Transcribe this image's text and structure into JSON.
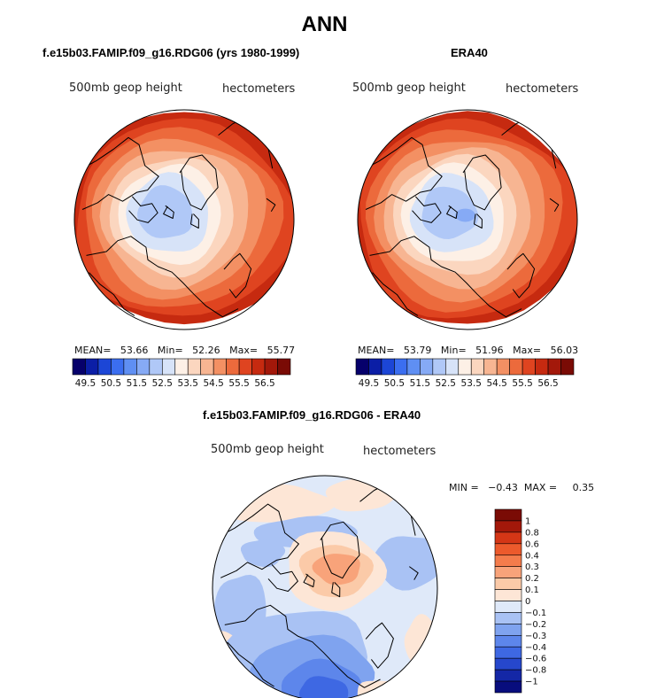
{
  "figure": {
    "title": "ANN"
  },
  "panels": [
    {
      "title": "f.e15b03.FAMIP.f09_g16.RDG06 (yrs 1980-1999)",
      "left_label": "500mb geop height",
      "right_label": "hectometers",
      "stats": {
        "mean_label": "MEAN=",
        "mean": "53.66",
        "min_label": "Min=",
        "min": "52.26",
        "max_label": "Max=",
        "max": "55.77"
      }
    },
    {
      "title": "ERA40",
      "left_label": "500mb geop height",
      "right_label": "hectometers",
      "stats": {
        "mean_label": "MEAN=",
        "mean": "53.79",
        "min_label": "Min=",
        "min": "51.96",
        "max_label": "Max=",
        "max": "56.03"
      }
    },
    {
      "title": "f.e15b03.FAMIP.f09_g16.RDG06 - ERA40",
      "left_label": "500mb geop height",
      "right_label": "hectometers",
      "stats": {
        "minmax_text": "MIN =   −0.43  MAX =     0.35"
      }
    }
  ],
  "chart_data": [
    {
      "type": "heatmap",
      "projection": "north polar stereographic",
      "title": "f.e15b03.FAMIP.f09_g16.RDG06 (yrs 1980-1999)",
      "units": "hectometers",
      "mean": 53.66,
      "min": 52.26,
      "max": 55.77,
      "colorbar_labels": [
        "49.5",
        "50.5",
        "51.5",
        "52.5",
        "53.5",
        "54.5",
        "55.5",
        "56.5"
      ],
      "colorbar_colors": [
        "#06006b",
        "#0b1ea6",
        "#1c46d6",
        "#3b6ef0",
        "#5f8ff3",
        "#86aaf5",
        "#b0c8f7",
        "#d7e3f8",
        "#fdf0e6",
        "#fbd6bf",
        "#f7b592",
        "#f39063",
        "#ec6a3c",
        "#df4420",
        "#c62a10",
        "#a3180a",
        "#7a0b05"
      ]
    },
    {
      "type": "heatmap",
      "projection": "north polar stereographic",
      "title": "ERA40",
      "units": "hectometers",
      "mean": 53.79,
      "min": 51.96,
      "max": 56.03,
      "colorbar_labels": [
        "49.5",
        "50.5",
        "51.5",
        "52.5",
        "53.5",
        "54.5",
        "55.5",
        "56.5"
      ],
      "colorbar_colors": [
        "#06006b",
        "#0b1ea6",
        "#1c46d6",
        "#3b6ef0",
        "#5f8ff3",
        "#86aaf5",
        "#b0c8f7",
        "#d7e3f8",
        "#fdf0e6",
        "#fbd6bf",
        "#f7b592",
        "#f39063",
        "#ec6a3c",
        "#df4420",
        "#c62a10",
        "#a3180a",
        "#7a0b05"
      ]
    },
    {
      "type": "heatmap",
      "projection": "north polar stereographic",
      "title": "f.e15b03.FAMIP.f09_g16.RDG06 - ERA40",
      "units": "hectometers",
      "min": -0.43,
      "max": 0.35,
      "colorbar_labels": [
        "1",
        "0.8",
        "0.6",
        "0.4",
        "0.3",
        "0.2",
        "0.1",
        "0",
        "−0.1",
        "−0.2",
        "−0.3",
        "−0.4",
        "−0.6",
        "−0.8",
        "−1"
      ],
      "colorbar_colors": [
        "#7a0b05",
        "#a3180a",
        "#d43616",
        "#ec5a2c",
        "#f47c4c",
        "#f8a37a",
        "#fbcaa8",
        "#fde6d6",
        "#dfe9f9",
        "#a9c2f4",
        "#7fa3ef",
        "#5d86eb",
        "#3e68e3",
        "#2647cc",
        "#1427a6",
        "#080d7d"
      ]
    }
  ]
}
